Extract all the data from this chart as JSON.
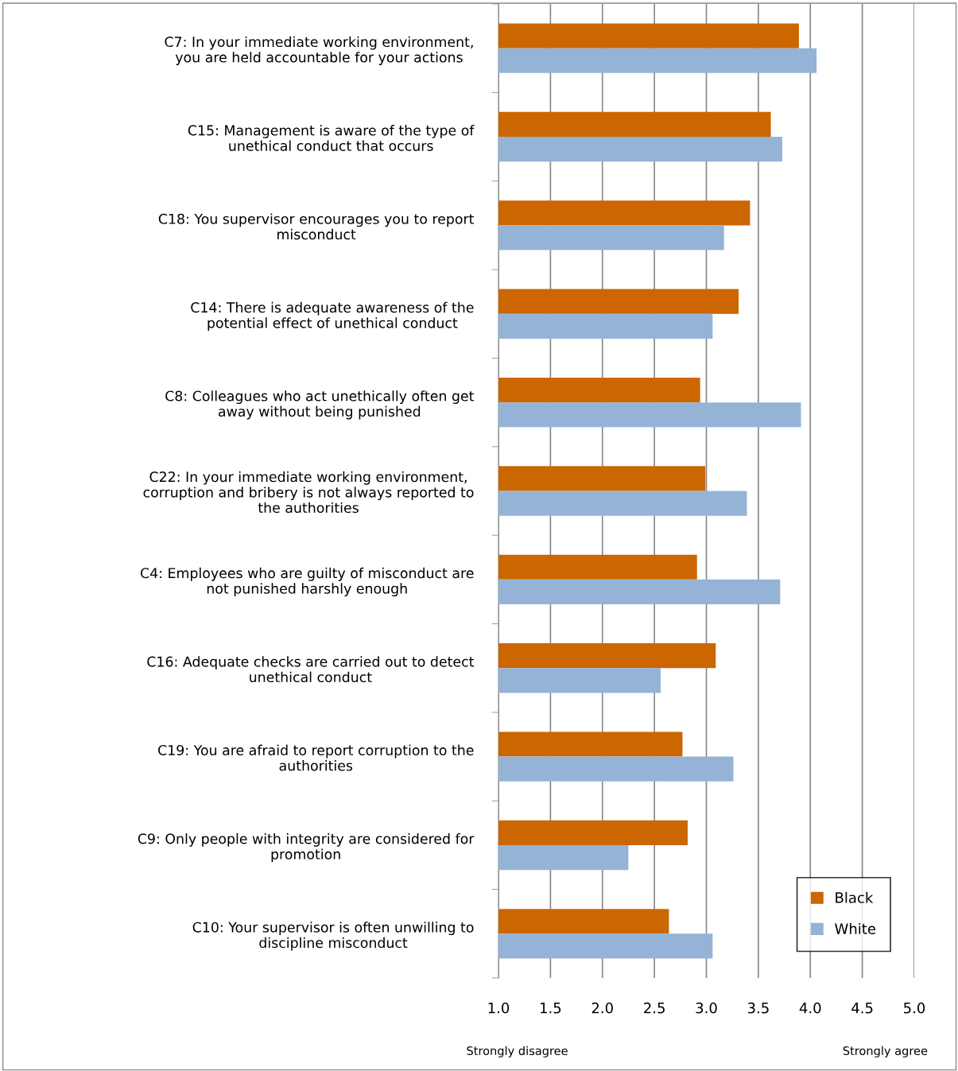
{
  "chart_data": {
    "type": "bar",
    "orientation": "horizontal",
    "categories": [
      "C7: In your immediate working environment,\nyou are held accountable for your actions",
      "C15: Management is aware of the type of\nunethical conduct that occurs",
      "C18: You supervisor encourages you to report\nmisconduct",
      "C14: There is adequate awareness of the\npotential effect of unethical conduct",
      "C8: Colleagues who act unethically often get\naway without being punished",
      "C22: In your immediate working environment,\ncorruption and bribery is not always reported to\nthe authorities",
      "C4: Employees who are guilty of misconduct are\nnot punished harshly enough",
      "C16: Adequate checks are carried out to detect\nunethical conduct",
      "C19: You are afraid to report corruption to the\nauthorities",
      "C9: Only people with integrity are considered for\npromotion",
      "C10: Your supervisor is often unwilling to\ndiscipline misconduct"
    ],
    "series": [
      {
        "name": "Black",
        "color": "#cc6600",
        "values": [
          3.89,
          3.62,
          3.42,
          3.31,
          2.94,
          2.99,
          2.91,
          3.09,
          2.77,
          2.82,
          2.64
        ]
      },
      {
        "name": "White",
        "color": "#95b3d7",
        "values": [
          4.06,
          3.73,
          3.17,
          3.06,
          3.91,
          3.39,
          3.71,
          2.56,
          3.26,
          2.25,
          3.06
        ]
      }
    ],
    "xlim": [
      1.0,
      5.0
    ],
    "xticks": [
      {
        "value": 1.0,
        "label": "1.0"
      },
      {
        "value": 1.5,
        "label": "1.5"
      },
      {
        "value": 2.0,
        "label": "2.0"
      },
      {
        "value": 2.5,
        "label": "2.5"
      },
      {
        "value": 3.0,
        "label": "3.0"
      },
      {
        "value": 3.5,
        "label": "3.5"
      },
      {
        "value": 4.0,
        "label": "4.0"
      },
      {
        "value": 4.5,
        "label": "4.5"
      },
      {
        "value": 5.0,
        "label": "5.0"
      }
    ],
    "grid": "x",
    "legend": "bottom right",
    "annotations": [
      "Strongly disagree",
      "Strongly agree"
    ]
  }
}
